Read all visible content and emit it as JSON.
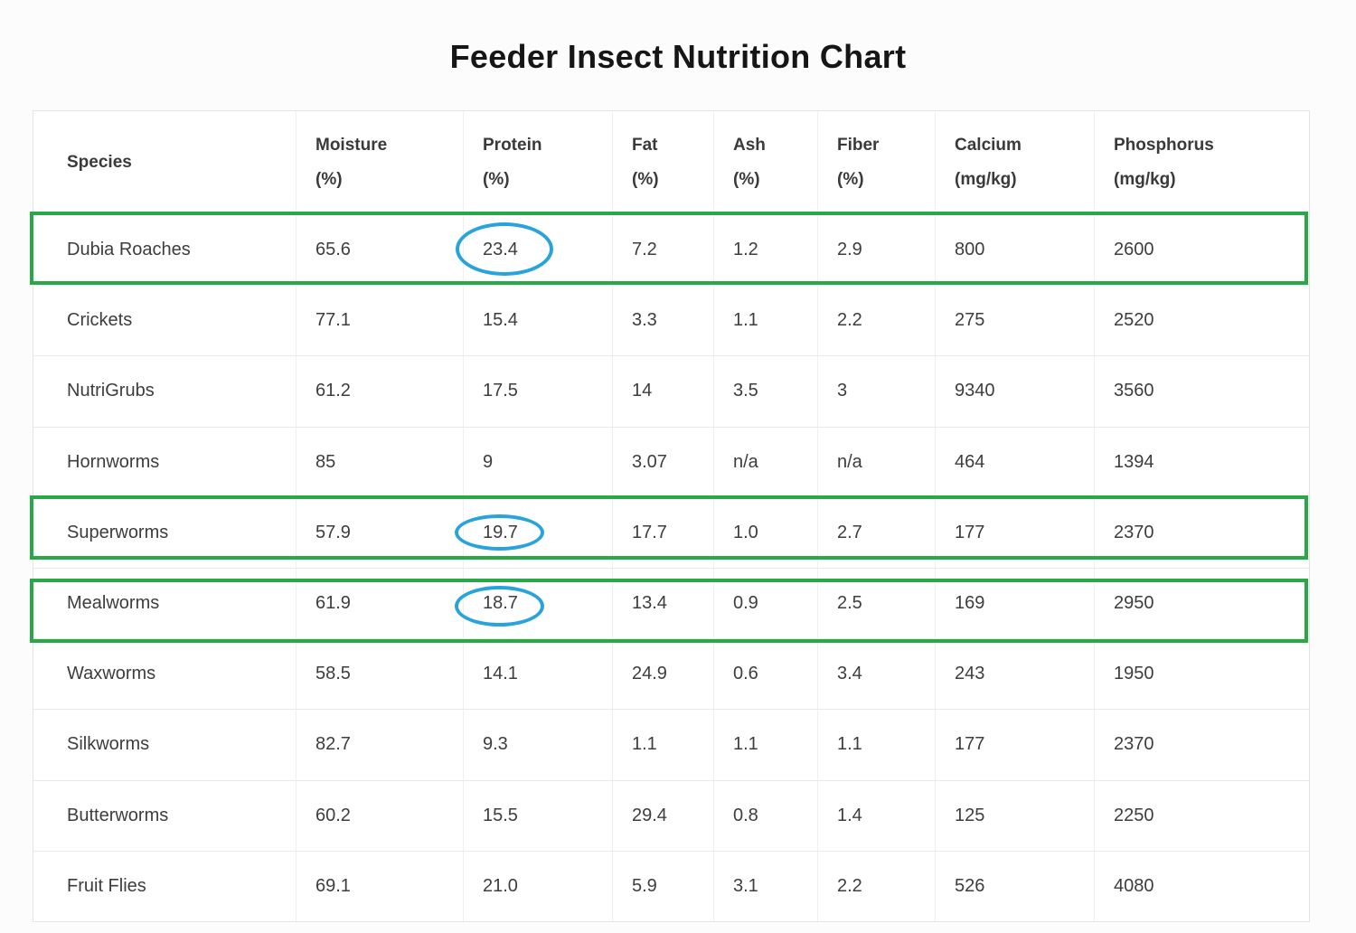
{
  "page": {
    "title": "Feeder Insect Nutrition Chart"
  },
  "table": {
    "columns": [
      {
        "line1": "Species",
        "line2": ""
      },
      {
        "line1": "Moisture",
        "line2": "(%)"
      },
      {
        "line1": "Protein",
        "line2": "(%)"
      },
      {
        "line1": "Fat",
        "line2": "(%)"
      },
      {
        "line1": "Ash",
        "line2": "(%)"
      },
      {
        "line1": "Fiber",
        "line2": "(%)"
      },
      {
        "line1": "Calcium",
        "line2": "(mg/kg)"
      },
      {
        "line1": "Phosphorus",
        "line2": "(mg/kg)"
      }
    ]
  },
  "chart_data": {
    "type": "table",
    "title": "Feeder Insect Nutrition Chart",
    "columns": [
      "Species",
      "Moisture (%)",
      "Protein (%)",
      "Fat (%)",
      "Ash (%)",
      "Fiber (%)",
      "Calcium (mg/kg)",
      "Phosphorus (mg/kg)"
    ],
    "rows": [
      [
        "Dubia Roaches",
        "65.6",
        "23.4",
        "7.2",
        "1.2",
        "2.9",
        "800",
        "2600"
      ],
      [
        "Crickets",
        "77.1",
        "15.4",
        "3.3",
        "1.1",
        "2.2",
        "275",
        "2520"
      ],
      [
        "NutriGrubs",
        "61.2",
        "17.5",
        "14",
        "3.5",
        "3",
        "9340",
        "3560"
      ],
      [
        "Hornworms",
        "85",
        "9",
        "3.07",
        "n/a",
        "n/a",
        "464",
        "1394"
      ],
      [
        "Superworms",
        "57.9",
        "19.7",
        "17.7",
        "1.0",
        "2.7",
        "177",
        "2370"
      ],
      [
        "Mealworms",
        "61.9",
        "18.7",
        "13.4",
        "0.9",
        "2.5",
        "169",
        "2950"
      ],
      [
        "Waxworms",
        "58.5",
        "14.1",
        "24.9",
        "0.6",
        "3.4",
        "243",
        "1950"
      ],
      [
        "Silkworms",
        "82.7",
        "9.3",
        "1.1",
        "1.1",
        "1.1",
        "177",
        "2370"
      ],
      [
        "Butterworms",
        "60.2",
        "15.5",
        "29.4",
        "0.8",
        "1.4",
        "125",
        "2250"
      ],
      [
        "Fruit Flies",
        "69.1",
        "21.0",
        "5.9",
        "3.1",
        "2.2",
        "526",
        "4080"
      ]
    ]
  },
  "annotations": {
    "highlighted_rows": [
      "Dubia Roaches",
      "Superworms",
      "Mealworms"
    ],
    "circled_protein_values": [
      "23.4",
      "19.7",
      "18.7"
    ],
    "highlight_box_color": "#29a847",
    "circle_color": "#29a3dc"
  }
}
